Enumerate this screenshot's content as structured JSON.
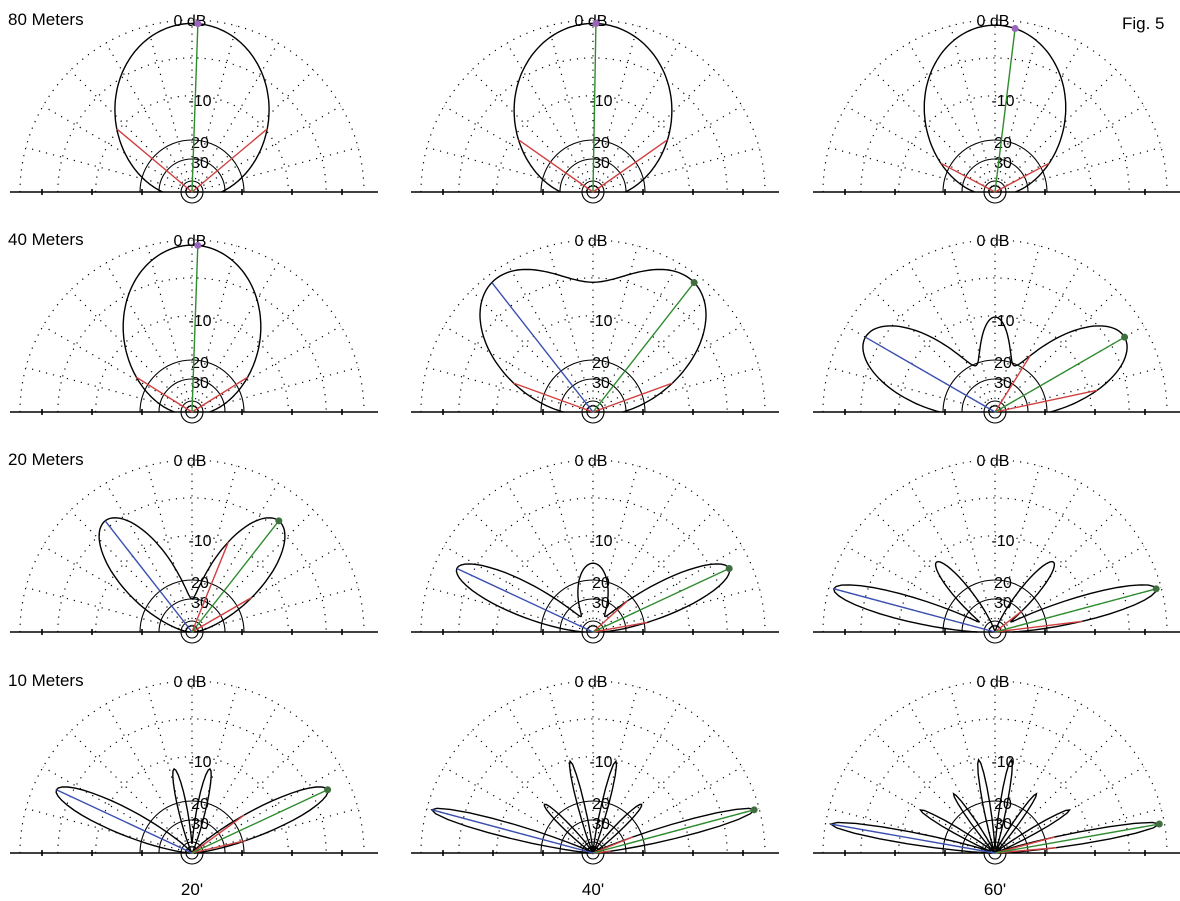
{
  "figure_label": "Fig. 5",
  "chart_data": {
    "type": "polar-elevation",
    "scale_labels": {
      "outer": "0 dB",
      "mid": "-10",
      "inner1": "20",
      "inner2": "30"
    },
    "line_colors": {
      "peak": "#2e8b2e",
      "half_power": "#d04040",
      "back": "#3a4fb0",
      "marker": "#9966bb"
    },
    "columns": [
      "20'",
      "40'",
      "60'"
    ],
    "rows": [
      {
        "band": "80 Meters",
        "panels": [
          {
            "peak_elev": 88,
            "back": false,
            "lobes": [
              {
                "c": 90,
                "w": 68,
                "a": 0.98
              }
            ],
            "half_power": [
              40,
              140
            ]
          },
          {
            "peak_elev": 89,
            "back": false,
            "lobes": [
              {
                "c": 90,
                "w": 70,
                "a": 0.98
              }
            ],
            "half_power": [
              35,
              145
            ]
          },
          {
            "peak_elev": 83,
            "back": false,
            "lobes": [
              {
                "c": 90,
                "w": 62,
                "a": 0.97
              }
            ],
            "half_power": [
              28,
              152
            ]
          }
        ]
      },
      {
        "band": "40 Meters",
        "panels": [
          {
            "peak_elev": 88,
            "back": false,
            "lobes": [
              {
                "c": 90,
                "w": 60,
                "a": 0.97
              }
            ],
            "half_power": [
              32,
              148
            ]
          },
          {
            "peak_elev": 52,
            "back": true,
            "lobes": [
              {
                "c": 52,
                "w": 40,
                "a": 0.93
              },
              {
                "c": 128,
                "w": 40,
                "a": 0.93
              }
            ],
            "half_power": [
              20,
              160
            ]
          },
          {
            "peak_elev": 30,
            "back": true,
            "lobes": [
              {
                "c": 30,
                "w": 30,
                "a": 0.87
              },
              {
                "c": 150,
                "w": 30,
                "a": 0.87
              },
              {
                "c": 90,
                "w": 18,
                "a": 0.52
              }
            ],
            "half_power": [
              12,
              58
            ]
          }
        ]
      },
      {
        "band": "20 Meters",
        "panels": [
          {
            "peak_elev": 52,
            "back": true,
            "lobes": [
              {
                "c": 52,
                "w": 26,
                "a": 0.82
              },
              {
                "c": 128,
                "w": 26,
                "a": 0.82
              }
            ],
            "half_power": [
              30,
              68
            ]
          },
          {
            "peak_elev": 25,
            "back": true,
            "lobes": [
              {
                "c": 25,
                "w": 15,
                "a": 0.87
              },
              {
                "c": 155,
                "w": 15,
                "a": 0.87
              },
              {
                "c": 90,
                "w": 30,
                "a": 0.4
              }
            ],
            "half_power": [
              10,
              42
            ]
          },
          {
            "peak_elev": 15,
            "back": true,
            "lobes": [
              {
                "c": 15,
                "w": 10,
                "a": 0.97
              },
              {
                "c": 165,
                "w": 10,
                "a": 0.97
              },
              {
                "c": 50,
                "w": 12,
                "a": 0.53
              },
              {
                "c": 130,
                "w": 12,
                "a": 0.53
              }
            ],
            "half_power": [
              7,
              38
            ]
          }
        ]
      },
      {
        "band": "10 Meters",
        "panels": [
          {
            "peak_elev": 25,
            "back": true,
            "lobes": [
              {
                "c": 25,
                "w": 12,
                "a": 0.87
              },
              {
                "c": 155,
                "w": 12,
                "a": 0.87
              },
              {
                "c": 78,
                "w": 7,
                "a": 0.5
              },
              {
                "c": 102,
                "w": 7,
                "a": 0.5
              }
            ],
            "half_power": [
              13,
              36
            ]
          },
          {
            "peak_elev": 15,
            "back": true,
            "lobes": [
              {
                "c": 15,
                "w": 6,
                "a": 0.97
              },
              {
                "c": 165,
                "w": 6,
                "a": 0.97
              },
              {
                "c": 45,
                "w": 7,
                "a": 0.4
              },
              {
                "c": 135,
                "w": 7,
                "a": 0.4
              },
              {
                "c": 76,
                "w": 5,
                "a": 0.55
              },
              {
                "c": 104,
                "w": 5,
                "a": 0.55
              }
            ],
            "half_power": [
              6,
              22
            ]
          },
          {
            "peak_elev": 10,
            "back": true,
            "lobes": [
              {
                "c": 10,
                "w": 5,
                "a": 0.97
              },
              {
                "c": 170,
                "w": 5,
                "a": 0.97
              },
              {
                "c": 30,
                "w": 5,
                "a": 0.5
              },
              {
                "c": 150,
                "w": 5,
                "a": 0.5
              },
              {
                "c": 55,
                "w": 5,
                "a": 0.42
              },
              {
                "c": 125,
                "w": 5,
                "a": 0.42
              },
              {
                "c": 80,
                "w": 5,
                "a": 0.55
              },
              {
                "c": 100,
                "w": 5,
                "a": 0.55
              }
            ],
            "half_power": [
              5,
              15
            ]
          }
        ]
      }
    ]
  }
}
